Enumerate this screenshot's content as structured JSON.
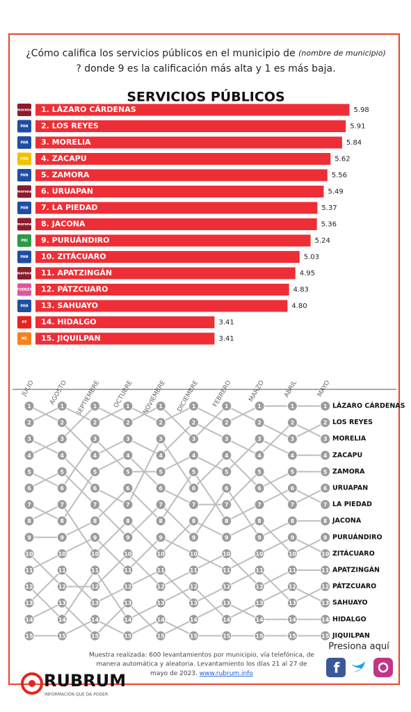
{
  "header": {
    "question_start": "¿Cómo califica los servicios públicos en el municipio de",
    "question_italic": "(nombre de municipio)",
    "question_end": "? donde 9 es la calificación más alta y 1 es más baja."
  },
  "chart_data": {
    "type": "bar",
    "title": "SERVICIOS PÚBLICOS",
    "color": "#ee2e36",
    "categories": [
      "1. LÁZARO CÁRDENAS",
      "2. LOS REYES",
      "3. MORELIA",
      "4. ZACAPU",
      "5. ZAMORA",
      "6. URUAPAN",
      "7. LA PIEDAD",
      "8. JACONA",
      "9. PURUÁNDIRO",
      "10. ZITÁCUARO",
      "11. APATZINGÁN",
      "12. PÁTZCUARO",
      "13. SAHUAYO",
      "14. HIDALGO",
      "15. JIQUILPAN"
    ],
    "values": [
      5.98,
      5.91,
      5.84,
      5.62,
      5.56,
      5.49,
      5.37,
      5.36,
      5.24,
      5.03,
      4.95,
      4.83,
      4.8,
      3.41,
      3.41
    ],
    "value_labels": [
      "5.98",
      "5.91",
      "5.84",
      "5.62",
      "5.56",
      "5.49",
      "5.37",
      "5.36",
      "5.24",
      "5.03",
      "4.95",
      "4.83",
      "4.80",
      "3.41",
      "3.41"
    ],
    "logos": [
      {
        "text": "morena",
        "color": "#8a1c2b"
      },
      {
        "text": "PAN",
        "color": "#1f4ea1"
      },
      {
        "text": "PAN",
        "color": "#1f4ea1"
      },
      {
        "text": "PRD",
        "color": "#f2c200"
      },
      {
        "text": "PAN",
        "color": "#1f4ea1"
      },
      {
        "text": "morena",
        "color": "#8a1c2b"
      },
      {
        "text": "PAN",
        "color": "#1f4ea1"
      },
      {
        "text": "morena",
        "color": "#8a1c2b"
      },
      {
        "text": "PRI",
        "color": "#2e9a46"
      },
      {
        "text": "PAN",
        "color": "#1f4ea1"
      },
      {
        "text": "morena",
        "color": "#8a1c2b"
      },
      {
        "text": "FUERZA",
        "color": "#e0569a"
      },
      {
        "text": "PAN",
        "color": "#1f4ea1"
      },
      {
        "text": "PT",
        "color": "#e52421"
      },
      {
        "text": "MC",
        "color": "#f58220"
      }
    ]
  },
  "bump": {
    "months": [
      "JULIO",
      "AGOSTO",
      "SEPTIEMBRE",
      "OCTUBRE",
      "NOVIEMBRE",
      "DICIEMBRE",
      "FEBRERO",
      "MARZO",
      "ABRIL",
      "MAYO"
    ],
    "rank_numbers": [
      1,
      2,
      3,
      4,
      5,
      6,
      7,
      8,
      9,
      10,
      11,
      12,
      13,
      14,
      15
    ],
    "series": [
      {
        "name": "LÁZARO CÁRDENAS",
        "ranks": [
          2,
          1,
          2,
          1,
          2,
          1,
          2,
          1,
          1,
          1
        ]
      },
      {
        "name": "LOS REYES",
        "ranks": [
          4,
          3,
          1,
          2,
          1,
          3,
          1,
          2,
          3,
          2
        ]
      },
      {
        "name": "MORELIA",
        "ranks": [
          1,
          2,
          4,
          3,
          4,
          2,
          3,
          4,
          2,
          3
        ]
      },
      {
        "name": "ZACAPU",
        "ranks": [
          5,
          6,
          3,
          5,
          5,
          4,
          5,
          3,
          4,
          4
        ]
      },
      {
        "name": "ZAMORA",
        "ranks": [
          3,
          4,
          6,
          7,
          3,
          6,
          4,
          6,
          5,
          5
        ]
      },
      {
        "name": "URUAPAN",
        "ranks": [
          7,
          8,
          5,
          4,
          6,
          7,
          7,
          5,
          7,
          6
        ]
      },
      {
        "name": "LA PIEDAD",
        "ranks": [
          9,
          9,
          8,
          6,
          8,
          5,
          8,
          7,
          6,
          7
        ]
      },
      {
        "name": "JACONA",
        "ranks": [
          6,
          5,
          7,
          9,
          7,
          9,
          6,
          9,
          8,
          8
        ]
      },
      {
        "name": "PURUÁNDIRO",
        "ranks": [
          8,
          7,
          10,
          8,
          10,
          8,
          9,
          8,
          10,
          9
        ]
      },
      {
        "name": "ZITÁCUARO",
        "ranks": [
          11,
          10,
          9,
          11,
          9,
          10,
          11,
          10,
          9,
          10
        ]
      },
      {
        "name": "APATZINGÁN",
        "ranks": [
          10,
          12,
          12,
          10,
          12,
          11,
          10,
          12,
          11,
          11
        ]
      },
      {
        "name": "PÁTZCUARO",
        "ranks": [
          13,
          11,
          13,
          12,
          11,
          13,
          12,
          11,
          13,
          12
        ]
      },
      {
        "name": "SAHUAYO",
        "ranks": [
          12,
          14,
          11,
          14,
          13,
          12,
          14,
          13,
          12,
          13
        ]
      },
      {
        "name": "HIDALGO",
        "ranks": [
          14,
          13,
          15,
          13,
          15,
          14,
          13,
          14,
          14,
          14
        ]
      },
      {
        "name": "JIQUILPAN",
        "ranks": [
          15,
          15,
          14,
          15,
          14,
          15,
          15,
          15,
          15,
          15
        ]
      }
    ]
  },
  "footer": {
    "note_1": "Muestra realizada: 600 levantamientos por municipio, vía telefónica, de",
    "note_2": "manera automática y aleatoria. Levantamiento los días 21 al 27 de",
    "note_3": "mayo de 2023.",
    "url": "www.rubrum.info",
    "cta": "Presiona aquí",
    "brand": "RUBRUM",
    "tagline": "INFORMACIÓN QUE DA PODER"
  }
}
